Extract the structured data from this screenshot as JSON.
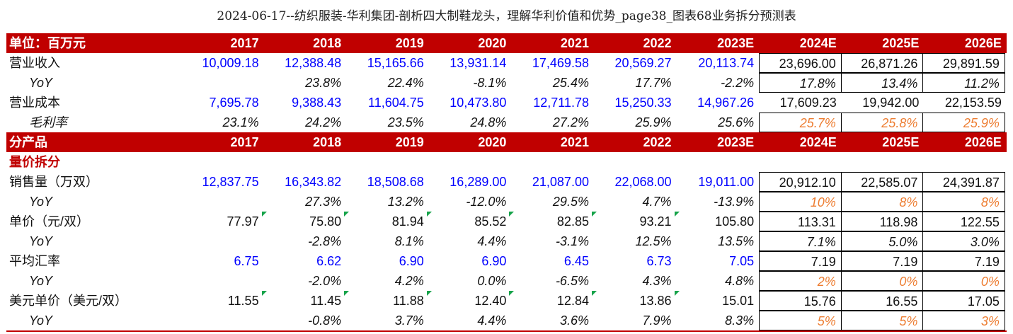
{
  "title": "2024-06-17--纺织服装-华利集团-剖析四大制鞋龙头，理解华利价值和优势_page38_图表68业务拆分预测表",
  "years": [
    "2017",
    "2018",
    "2019",
    "2020",
    "2021",
    "2022",
    "2023E",
    "2024E",
    "2025E",
    "2026E"
  ],
  "header1": {
    "label": "单位：百万元"
  },
  "rows_top": [
    {
      "label": "营业收入",
      "sub": false,
      "style": "value",
      "values": [
        "10,009.18",
        "12,388.48",
        "15,165.66",
        "13,931.14",
        "17,469.58",
        "20,569.27",
        "20,113.74",
        "23,696.00",
        "26,871.26",
        "29,891.59"
      ]
    },
    {
      "label": "YoY",
      "sub": true,
      "style": "pct",
      "values": [
        "",
        "23.8%",
        "22.4%",
        "-8.1%",
        "25.4%",
        "17.7%",
        "-2.2%",
        "17.8%",
        "13.4%",
        "11.2%"
      ]
    },
    {
      "label": "营业成本",
      "sub": false,
      "style": "value",
      "values": [
        "7,695.78",
        "9,388.43",
        "11,604.75",
        "10,473.80",
        "12,711.78",
        "15,250.33",
        "14,967.26",
        "17,609.23",
        "19,942.00",
        "22,153.59"
      ]
    },
    {
      "label": "毛利率",
      "sub": true,
      "style": "pct",
      "values": [
        "23.1%",
        "24.2%",
        "23.5%",
        "24.8%",
        "27.2%",
        "25.9%",
        "25.6%",
        "25.7%",
        "25.8%",
        "25.9%"
      ]
    }
  ],
  "header2": {
    "label": "分产品"
  },
  "section_label": "量价拆分",
  "rows_bottom": [
    {
      "label": "销售量（万双）",
      "sub": false,
      "values": [
        "12,837.75",
        "16,343.82",
        "18,508.68",
        "16,289.00",
        "21,087.00",
        "22,068.00",
        "19,011.00",
        "20,912.10",
        "22,585.07",
        "24,391.87"
      ]
    },
    {
      "label": "YoY",
      "sub": true,
      "values": [
        "",
        "27.3%",
        "13.2%",
        "-12.0%",
        "29.5%",
        "4.7%",
        "-13.9%",
        "10%",
        "8%",
        "8%"
      ]
    },
    {
      "label": "单价（元/双）",
      "sub": false,
      "values": [
        "77.97",
        "75.80",
        "81.94",
        "85.52",
        "82.85",
        "93.21",
        "105.80",
        "113.31",
        "118.98",
        "122.55"
      ]
    },
    {
      "label": "YoY",
      "sub": true,
      "values": [
        "",
        "-2.8%",
        "8.1%",
        "4.4%",
        "-3.1%",
        "12.5%",
        "13.5%",
        "7.1%",
        "5.0%",
        "3.0%"
      ]
    },
    {
      "label": "平均汇率",
      "sub": false,
      "values": [
        "6.75",
        "6.62",
        "6.90",
        "6.90",
        "6.45",
        "6.73",
        "7.05",
        "7.19",
        "7.19",
        "7.19"
      ]
    },
    {
      "label": "YoY",
      "sub": true,
      "values": [
        "",
        "-2.0%",
        "4.2%",
        "0.0%",
        "-6.5%",
        "4.3%",
        "4.8%",
        "2%",
        "0%",
        "0%"
      ]
    },
    {
      "label": "美元单价（美元/双）",
      "sub": false,
      "values": [
        "11.55",
        "11.45",
        "11.88",
        "12.40",
        "12.84",
        "13.86",
        "15.01",
        "15.76",
        "16.55",
        "17.05"
      ]
    },
    {
      "label": "YoY",
      "sub": true,
      "values": [
        "",
        "-0.8%",
        "3.7%",
        "4.4%",
        "3.6%",
        "7.9%",
        "8.3%",
        "5%",
        "5%",
        "3%"
      ]
    }
  ],
  "colors": {
    "header_bg": "#c00000",
    "input_blue": "#0000ff",
    "forecast_orange": "#ed7d31",
    "flag_green": "#16a34a"
  }
}
